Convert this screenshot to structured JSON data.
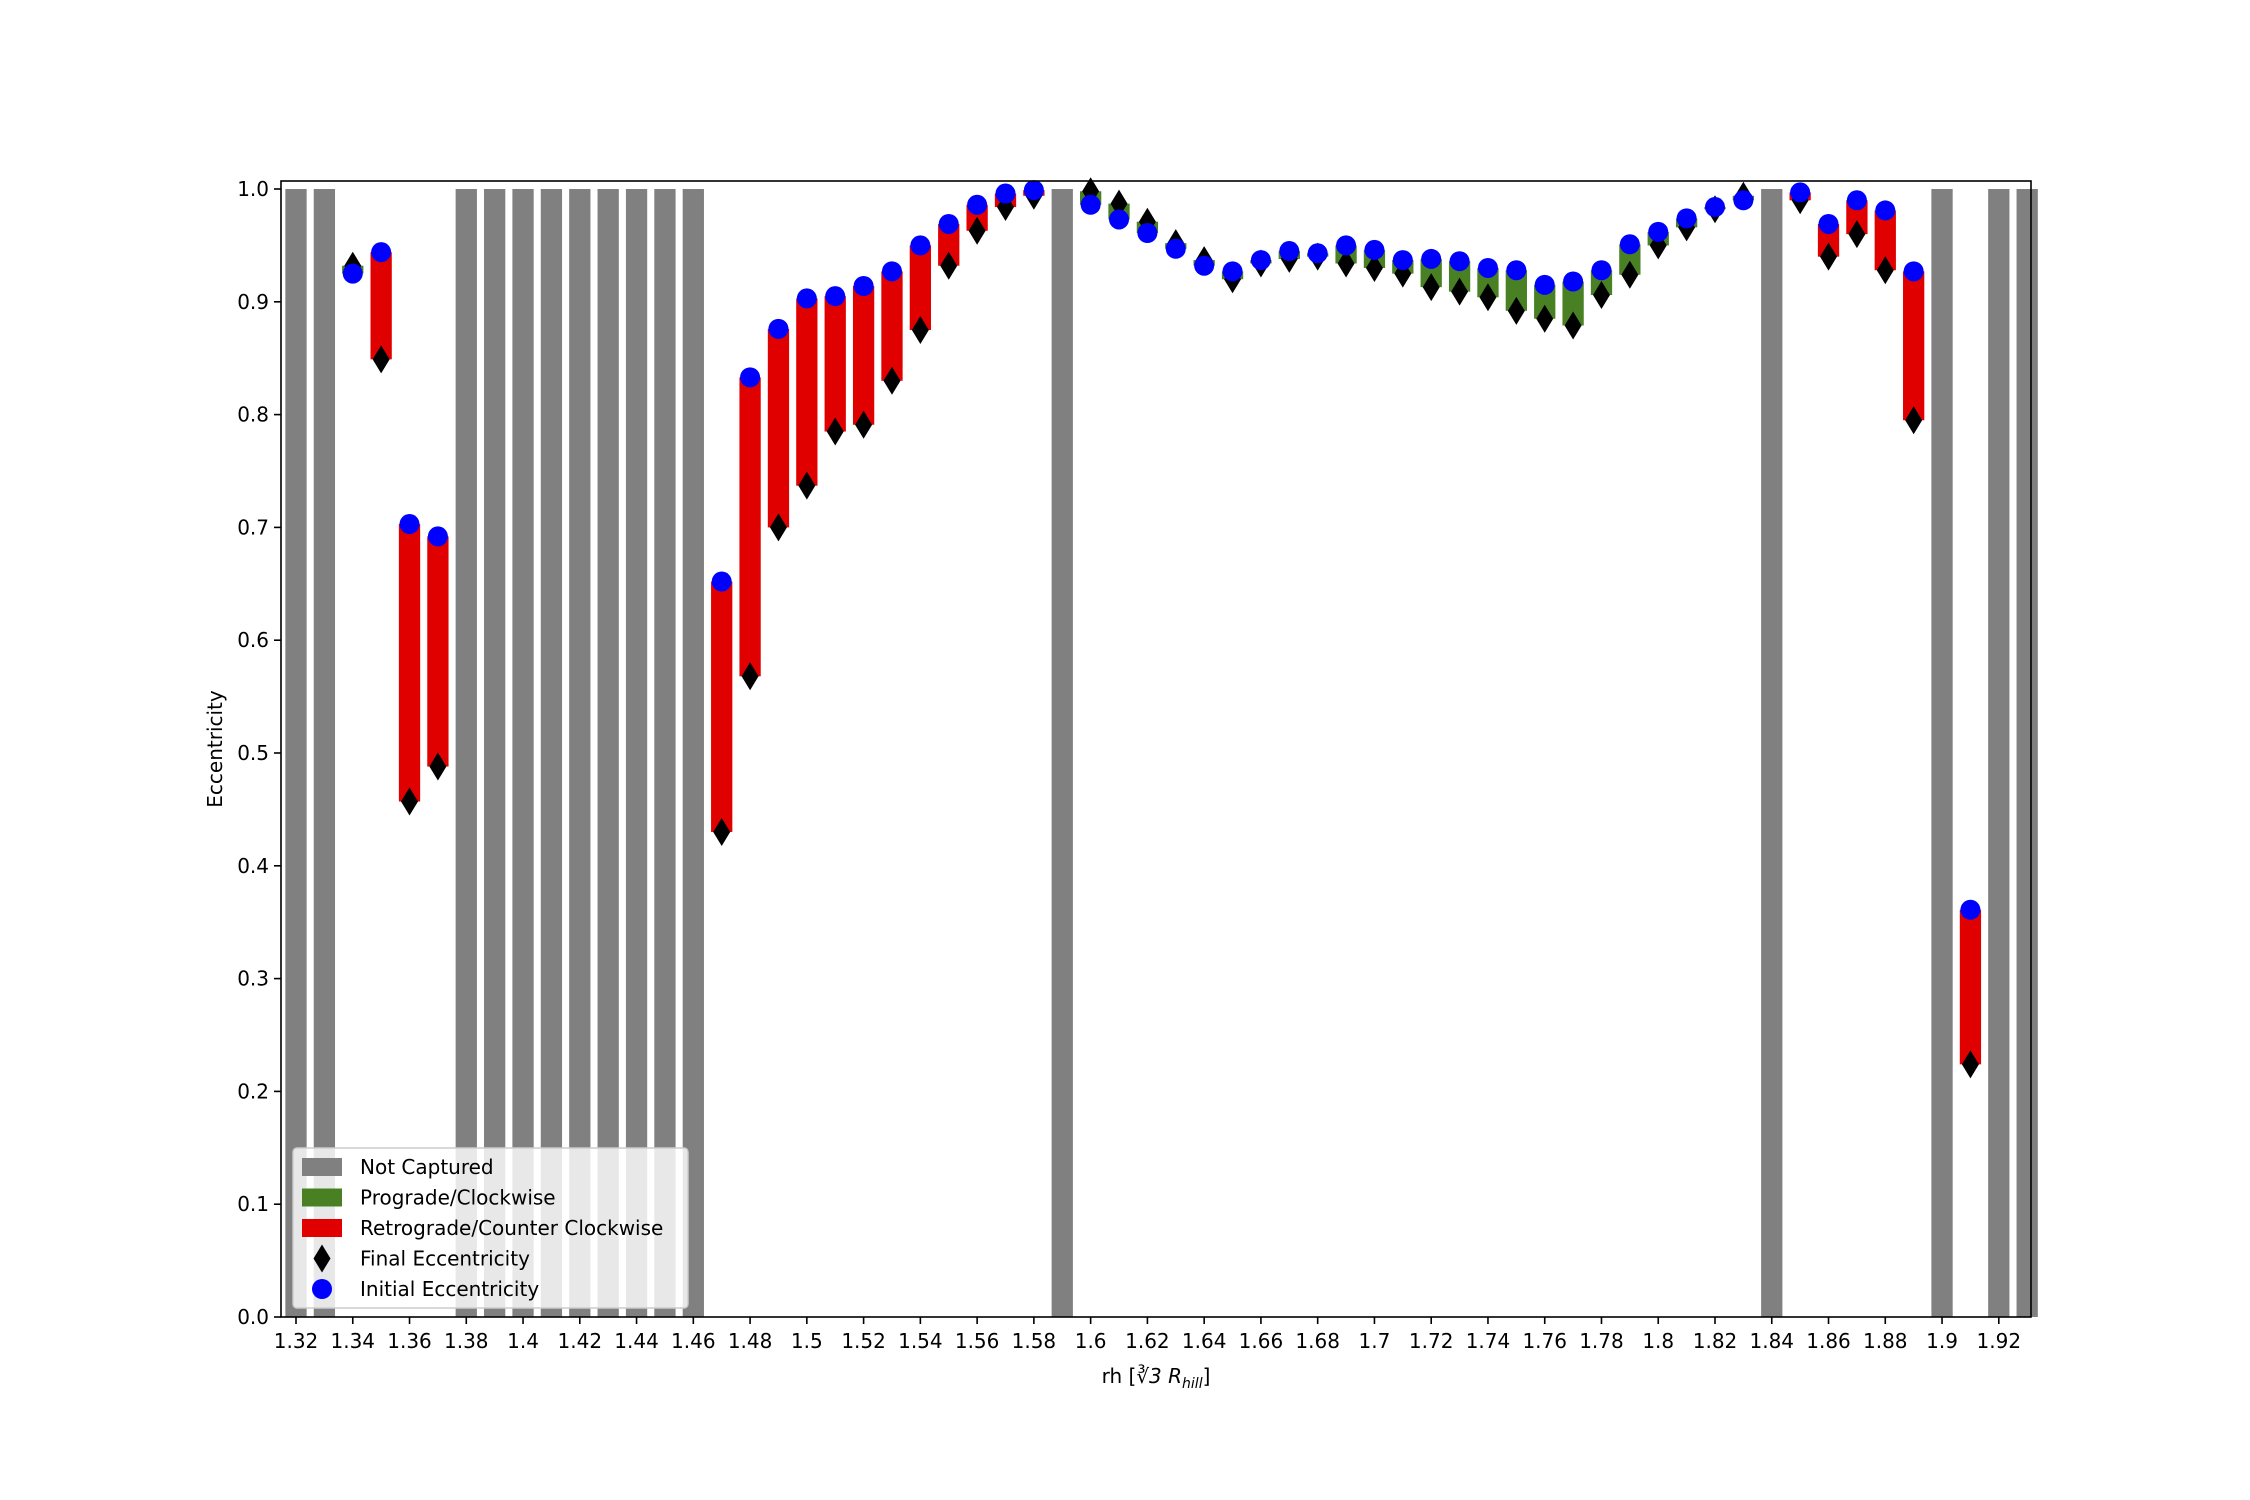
{
  "chart_data": {
    "type": "bar",
    "title": "",
    "xlabel": "rh [",
    "xlabel_math": "∛3 R",
    "xlabel_sub": "hill",
    "xlabel_end": "]",
    "ylabel": "Eccentricity",
    "xlim": [
      1.315,
      1.935
    ],
    "ylim": [
      0.0,
      1.01
    ],
    "grid": false,
    "legend_position": "lower-left",
    "x_ticks": [
      1.32,
      1.34,
      1.36,
      1.38,
      1.4,
      1.42,
      1.44,
      1.46,
      1.48,
      1.5,
      1.52,
      1.54,
      1.56,
      1.58,
      1.6,
      1.62,
      1.64,
      1.66,
      1.68,
      1.7,
      1.72,
      1.74,
      1.76,
      1.78,
      1.8,
      1.82,
      1.84,
      1.86,
      1.88,
      1.9,
      1.92
    ],
    "x_tick_labels": [
      "1.32",
      "1.34",
      "1.36",
      "1.38",
      "1.4",
      "1.42",
      "1.44",
      "1.46",
      "1.48",
      "1.5",
      "1.52",
      "1.54",
      "1.56",
      "1.58",
      "1.6",
      "1.62",
      "1.64",
      "1.66",
      "1.68",
      "1.7",
      "1.72",
      "1.74",
      "1.76",
      "1.78",
      "1.8",
      "1.82",
      "1.84",
      "1.86",
      "1.88",
      "1.9",
      "1.92"
    ],
    "y_ticks": [
      0.0,
      0.1,
      0.2,
      0.3,
      0.4,
      0.5,
      0.6,
      0.7,
      0.8,
      0.9,
      1.0
    ],
    "y_tick_labels": [
      "0.0",
      "0.1",
      "0.2",
      "0.3",
      "0.4",
      "0.5",
      "0.6",
      "0.7",
      "0.8",
      "0.9",
      "1.0"
    ],
    "bar_width": 0.0075,
    "colors": {
      "not_captured": "#808080",
      "prograde": "#4a8024",
      "retrograde": "#e00000",
      "final": "#000000",
      "initial": "#0000ff"
    },
    "legend": [
      {
        "key": "not_captured",
        "label": "Not Captured",
        "marker": "rect"
      },
      {
        "key": "prograde",
        "label": "Prograde/Clockwise",
        "marker": "rect"
      },
      {
        "key": "retrograde",
        "label": "Retrograde/Counter Clockwise",
        "marker": "rect"
      },
      {
        "key": "final",
        "label": "Final Eccentricity",
        "marker": "diamond"
      },
      {
        "key": "initial",
        "label": "Initial Eccentricity",
        "marker": "circle"
      }
    ],
    "not_captured_x": [
      1.32,
      1.33,
      1.38,
      1.39,
      1.4,
      1.41,
      1.42,
      1.43,
      1.44,
      1.45,
      1.46,
      1.59,
      1.84,
      1.9,
      1.92,
      1.93
    ],
    "captured": [
      {
        "x": 1.34,
        "initial": 0.925,
        "final": 0.932,
        "dir": "prograde"
      },
      {
        "x": 1.35,
        "initial": 0.944,
        "final": 0.849,
        "dir": "retrograde"
      },
      {
        "x": 1.36,
        "initial": 0.703,
        "final": 0.457,
        "dir": "retrograde"
      },
      {
        "x": 1.37,
        "initial": 0.692,
        "final": 0.488,
        "dir": "retrograde"
      },
      {
        "x": 1.47,
        "initial": 0.652,
        "final": 0.43,
        "dir": "retrograde"
      },
      {
        "x": 1.48,
        "initial": 0.833,
        "final": 0.568,
        "dir": "retrograde"
      },
      {
        "x": 1.49,
        "initial": 0.876,
        "final": 0.7,
        "dir": "retrograde"
      },
      {
        "x": 1.5,
        "initial": 0.903,
        "final": 0.737,
        "dir": "retrograde"
      },
      {
        "x": 1.51,
        "initial": 0.905,
        "final": 0.785,
        "dir": "retrograde"
      },
      {
        "x": 1.52,
        "initial": 0.914,
        "final": 0.791,
        "dir": "retrograde"
      },
      {
        "x": 1.53,
        "initial": 0.927,
        "final": 0.83,
        "dir": "retrograde"
      },
      {
        "x": 1.54,
        "initial": 0.95,
        "final": 0.875,
        "dir": "retrograde"
      },
      {
        "x": 1.55,
        "initial": 0.969,
        "final": 0.932,
        "dir": "retrograde"
      },
      {
        "x": 1.56,
        "initial": 0.986,
        "final": 0.963,
        "dir": "retrograde"
      },
      {
        "x": 1.57,
        "initial": 0.996,
        "final": 0.984,
        "dir": "retrograde"
      },
      {
        "x": 1.58,
        "initial": 0.999,
        "final": 0.994,
        "dir": "retrograde"
      },
      {
        "x": 1.6,
        "initial": 0.986,
        "final": 0.998,
        "dir": "prograde"
      },
      {
        "x": 1.61,
        "initial": 0.973,
        "final": 0.987,
        "dir": "prograde"
      },
      {
        "x": 1.62,
        "initial": 0.961,
        "final": 0.971,
        "dir": "prograde"
      },
      {
        "x": 1.63,
        "initial": 0.947,
        "final": 0.952,
        "dir": "prograde"
      },
      {
        "x": 1.64,
        "initial": 0.932,
        "final": 0.937,
        "dir": "prograde"
      },
      {
        "x": 1.65,
        "initial": 0.927,
        "final": 0.92,
        "dir": "prograde"
      },
      {
        "x": 1.66,
        "initial": 0.937,
        "final": 0.934,
        "dir": "prograde"
      },
      {
        "x": 1.67,
        "initial": 0.945,
        "final": 0.938,
        "dir": "prograde"
      },
      {
        "x": 1.68,
        "initial": 0.943,
        "final": 0.94,
        "dir": "prograde"
      },
      {
        "x": 1.69,
        "initial": 0.95,
        "final": 0.934,
        "dir": "prograde"
      },
      {
        "x": 1.7,
        "initial": 0.946,
        "final": 0.93,
        "dir": "prograde"
      },
      {
        "x": 1.71,
        "initial": 0.937,
        "final": 0.925,
        "dir": "prograde"
      },
      {
        "x": 1.72,
        "initial": 0.938,
        "final": 0.913,
        "dir": "prograde"
      },
      {
        "x": 1.73,
        "initial": 0.936,
        "final": 0.909,
        "dir": "prograde"
      },
      {
        "x": 1.74,
        "initial": 0.93,
        "final": 0.904,
        "dir": "prograde"
      },
      {
        "x": 1.75,
        "initial": 0.928,
        "final": 0.892,
        "dir": "prograde"
      },
      {
        "x": 1.76,
        "initial": 0.915,
        "final": 0.885,
        "dir": "prograde"
      },
      {
        "x": 1.77,
        "initial": 0.918,
        "final": 0.879,
        "dir": "prograde"
      },
      {
        "x": 1.78,
        "initial": 0.928,
        "final": 0.906,
        "dir": "prograde"
      },
      {
        "x": 1.79,
        "initial": 0.951,
        "final": 0.924,
        "dir": "prograde"
      },
      {
        "x": 1.8,
        "initial": 0.962,
        "final": 0.95,
        "dir": "prograde"
      },
      {
        "x": 1.81,
        "initial": 0.974,
        "final": 0.966,
        "dir": "prograde"
      },
      {
        "x": 1.82,
        "initial": 0.984,
        "final": 0.982,
        "dir": "prograde"
      },
      {
        "x": 1.83,
        "initial": 0.99,
        "final": 0.994,
        "dir": "prograde"
      },
      {
        "x": 1.85,
        "initial": 0.997,
        "final": 0.99,
        "dir": "retrograde"
      },
      {
        "x": 1.86,
        "initial": 0.969,
        "final": 0.94,
        "dir": "retrograde"
      },
      {
        "x": 1.87,
        "initial": 0.99,
        "final": 0.96,
        "dir": "retrograde"
      },
      {
        "x": 1.88,
        "initial": 0.981,
        "final": 0.928,
        "dir": "retrograde"
      },
      {
        "x": 1.89,
        "initial": 0.927,
        "final": 0.795,
        "dir": "retrograde"
      },
      {
        "x": 1.91,
        "initial": 0.361,
        "final": 0.224,
        "dir": "retrograde"
      }
    ]
  }
}
